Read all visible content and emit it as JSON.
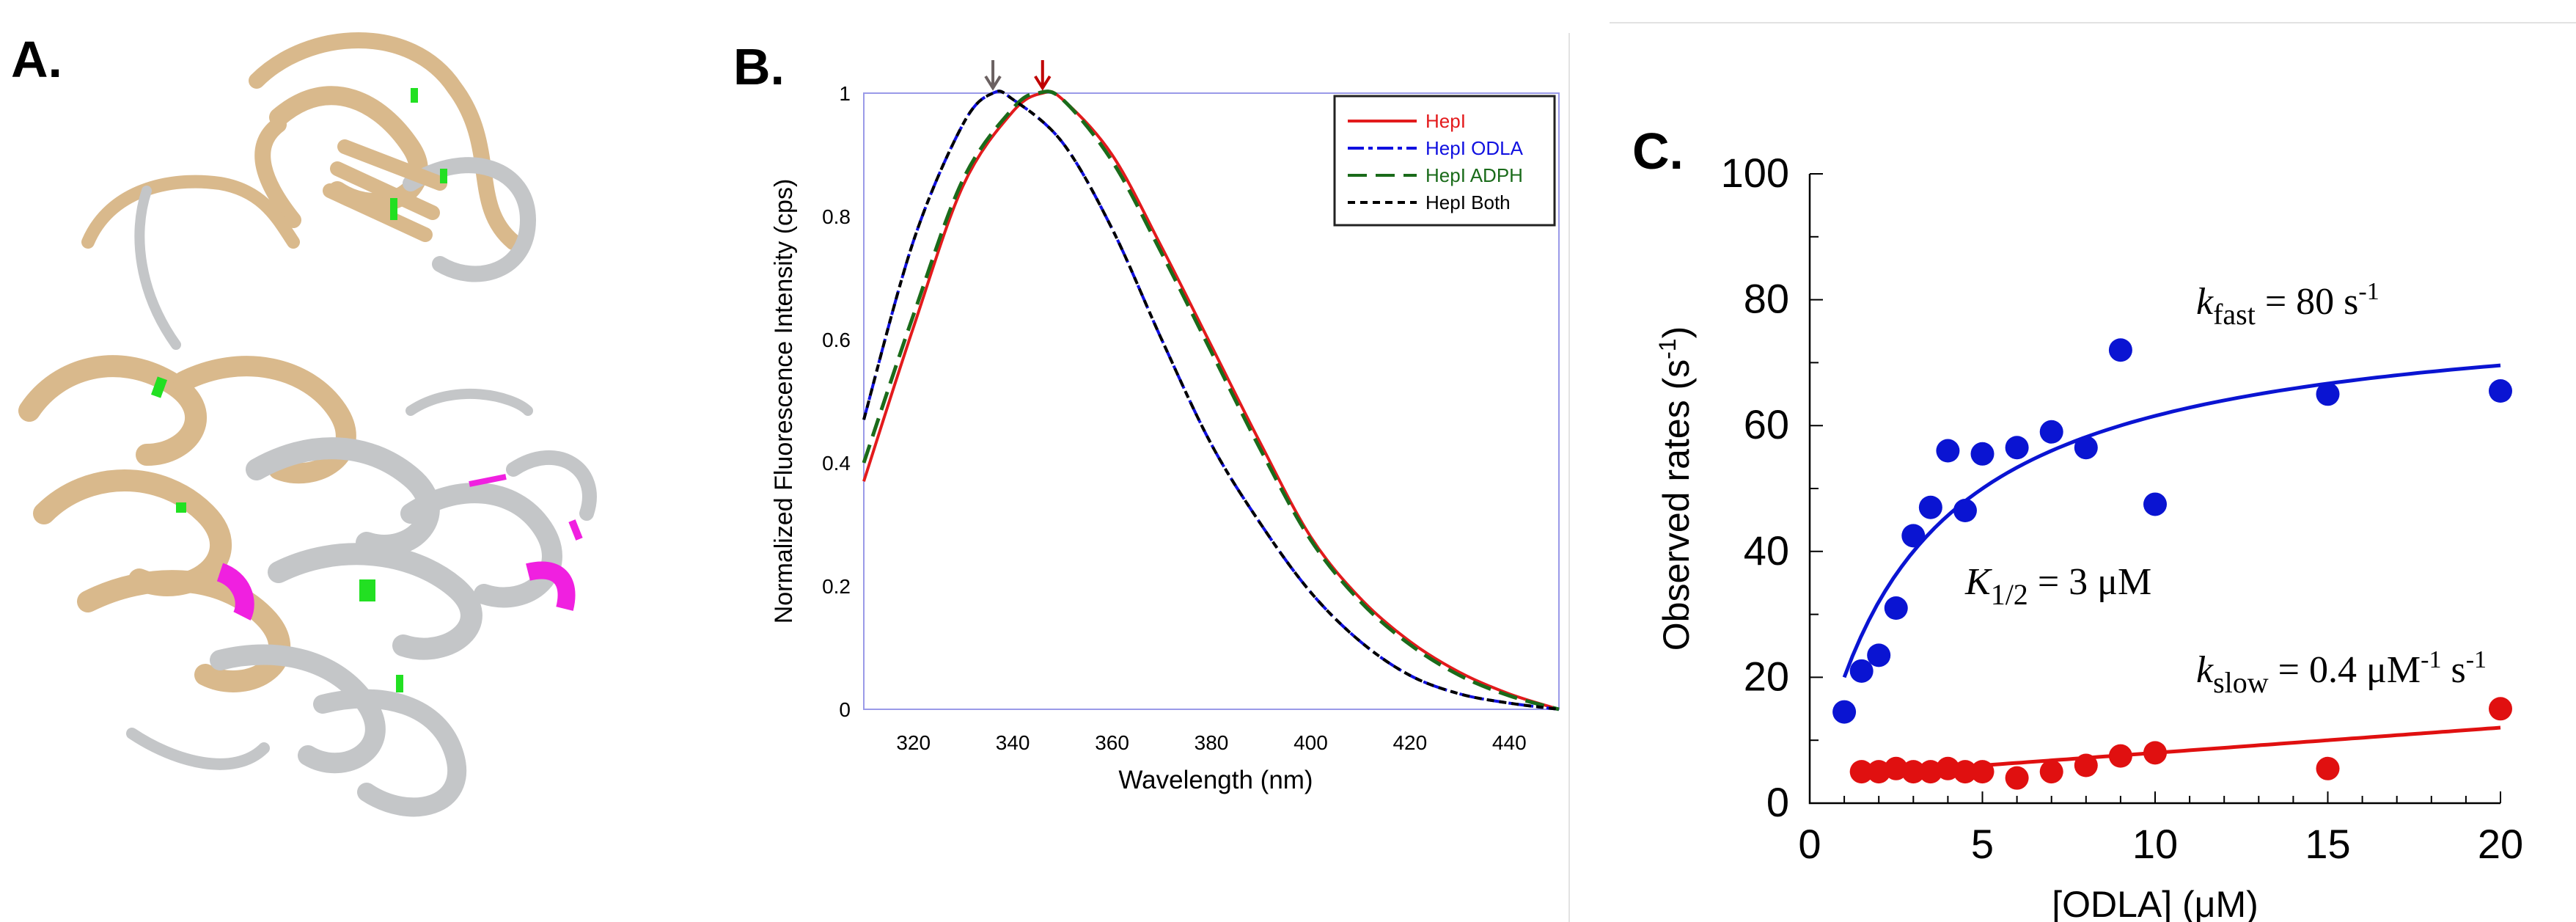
{
  "panels": {
    "a_label": "A.",
    "b_label": "B.",
    "c_label": "C."
  },
  "panel_a": {
    "colors": {
      "domain1": "#d9b98c",
      "domain2": "#c4c6c8",
      "highlight_green": "#22e022",
      "highlight_magenta": "#f020e0"
    }
  },
  "chart_data": [
    {
      "type": "line",
      "title": "",
      "xlabel": "Wavelength (nm)",
      "ylabel": "Normalized Fluorescence Intensity (cps)",
      "xlim": [
        310,
        450
      ],
      "ylim": [
        0,
        1
      ],
      "xticks": [
        "320",
        "340",
        "360",
        "380",
        "400",
        "420",
        "440"
      ],
      "yticks": [
        "0",
        "0.2",
        "0.4",
        "0.6",
        "0.8",
        "1"
      ],
      "legend_position": "top-right",
      "peak_arrows": [
        {
          "x": 336,
          "color": "#6b6161"
        },
        {
          "x": 346,
          "color": "#c00000"
        }
      ],
      "series": [
        {
          "name": "HepI",
          "color": "#e31a1c",
          "style": "solid",
          "points": [
            [
              310,
              0.37
            ],
            [
              320,
              0.62
            ],
            [
              330,
              0.85
            ],
            [
              340,
              0.97
            ],
            [
              346,
              1.0
            ],
            [
              350,
              0.99
            ],
            [
              360,
              0.9
            ],
            [
              370,
              0.75
            ],
            [
              380,
              0.59
            ],
            [
              390,
              0.43
            ],
            [
              400,
              0.28
            ],
            [
              410,
              0.18
            ],
            [
              420,
              0.11
            ],
            [
              430,
              0.06
            ],
            [
              440,
              0.025
            ],
            [
              450,
              0
            ]
          ]
        },
        {
          "name": "HepI ODLA",
          "color": "#1010e0",
          "style": "dashdot",
          "points": [
            [
              310,
              0.47
            ],
            [
              320,
              0.76
            ],
            [
              330,
              0.95
            ],
            [
              336,
              1.0
            ],
            [
              340,
              0.99
            ],
            [
              350,
              0.92
            ],
            [
              360,
              0.78
            ],
            [
              370,
              0.6
            ],
            [
              380,
              0.43
            ],
            [
              390,
              0.3
            ],
            [
              400,
              0.19
            ],
            [
              410,
              0.11
            ],
            [
              420,
              0.055
            ],
            [
              430,
              0.025
            ],
            [
              440,
              0.01
            ],
            [
              450,
              0
            ]
          ]
        },
        {
          "name": "HepI ADPH",
          "color": "#1a6b1a",
          "style": "longdash",
          "points": [
            [
              310,
              0.4
            ],
            [
              320,
              0.64
            ],
            [
              330,
              0.86
            ],
            [
              340,
              0.975
            ],
            [
              345,
              1.0
            ],
            [
              350,
              0.99
            ],
            [
              360,
              0.89
            ],
            [
              370,
              0.74
            ],
            [
              380,
              0.58
            ],
            [
              390,
              0.42
            ],
            [
              400,
              0.275
            ],
            [
              410,
              0.175
            ],
            [
              420,
              0.105
            ],
            [
              430,
              0.055
            ],
            [
              440,
              0.022
            ],
            [
              450,
              0
            ]
          ]
        },
        {
          "name": "HepI Both",
          "color": "#000000",
          "style": "shortdash",
          "points": [
            [
              310,
              0.47
            ],
            [
              320,
              0.76
            ],
            [
              330,
              0.95
            ],
            [
              336,
              1.0
            ],
            [
              340,
              0.99
            ],
            [
              350,
              0.92
            ],
            [
              360,
              0.78
            ],
            [
              370,
              0.6
            ],
            [
              380,
              0.43
            ],
            [
              390,
              0.3
            ],
            [
              400,
              0.19
            ],
            [
              410,
              0.11
            ],
            [
              420,
              0.055
            ],
            [
              430,
              0.025
            ],
            [
              440,
              0.01
            ],
            [
              450,
              0
            ]
          ]
        }
      ]
    },
    {
      "type": "scatter",
      "title": "",
      "xlabel": "[ODLA] (μM)",
      "ylabel_main": "Observed rates (s",
      "ylabel_sup": "-1",
      "ylabel_end": ")",
      "xlim": [
        0,
        20
      ],
      "ylim": [
        0,
        100
      ],
      "xticks": [
        "0",
        "5",
        "10",
        "15",
        "20"
      ],
      "yticks": [
        "0",
        "20",
        "40",
        "60",
        "80",
        "100"
      ],
      "series": [
        {
          "name": "fast",
          "color": "#0a14d2",
          "points": [
            [
              1,
              14.5
            ],
            [
              1.5,
              21
            ],
            [
              2,
              23.5
            ],
            [
              2.5,
              31
            ],
            [
              3,
              42.5
            ],
            [
              3.5,
              47
            ],
            [
              4,
              56
            ],
            [
              4.5,
              46.5
            ],
            [
              5,
              55.5
            ],
            [
              6,
              56.5
            ],
            [
              7,
              59
            ],
            [
              8,
              56.5
            ],
            [
              9,
              72
            ],
            [
              10,
              47.5
            ],
            [
              15,
              65
            ],
            [
              20,
              65.5
            ]
          ],
          "fit": {
            "model": "hyperbolic",
            "kmax": 80,
            "k_half": 3,
            "x_range": [
              1,
              20
            ]
          }
        },
        {
          "name": "slow",
          "color": "#e01010",
          "points": [
            [
              1.5,
              5
            ],
            [
              2,
              5
            ],
            [
              2.5,
              5.5
            ],
            [
              3,
              5
            ],
            [
              3.5,
              5
            ],
            [
              4,
              5.5
            ],
            [
              4.5,
              5
            ],
            [
              5,
              5
            ],
            [
              6,
              4
            ],
            [
              7,
              5
            ],
            [
              8,
              6
            ],
            [
              9,
              7.5
            ],
            [
              10,
              8
            ],
            [
              15,
              5.5
            ],
            [
              20,
              15
            ]
          ],
          "fit": {
            "model": "linear",
            "slope": 0.4,
            "intercept": 4,
            "x_range": [
              5,
              20
            ]
          }
        }
      ],
      "annotations": {
        "fast": {
          "k": "k",
          "sub": "fast",
          "mid": " = 80 s",
          "sup": "-1"
        },
        "khalf": {
          "k": "K",
          "sub": "1/2",
          "mid": " = 3 μM"
        },
        "slow": {
          "k": "k",
          "sub": "slow",
          "mid": " = 0.4 μM",
          "sup1": "-1",
          "mid2": " s",
          "sup2": "-1"
        }
      }
    }
  ]
}
